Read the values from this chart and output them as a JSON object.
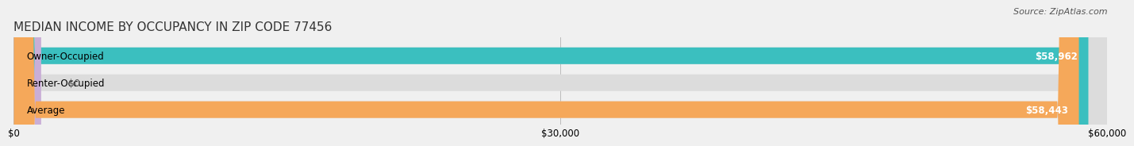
{
  "title": "MEDIAN INCOME BY OCCUPANCY IN ZIP CODE 77456",
  "source": "Source: ZipAtlas.com",
  "categories": [
    "Owner-Occupied",
    "Renter-Occupied",
    "Average"
  ],
  "values": [
    58962,
    0,
    58443
  ],
  "bar_colors": [
    "#3bbfbf",
    "#c9aed6",
    "#f5a85a"
  ],
  "bar_labels": [
    "$58,962",
    "$0",
    "$58,443"
  ],
  "xlim": [
    0,
    60000
  ],
  "xticks": [
    0,
    30000,
    60000
  ],
  "xtick_labels": [
    "$0",
    "$30,000",
    "$60,000"
  ],
  "background_color": "#f0f0f0",
  "bar_bg_color": "#dcdcdc",
  "title_fontsize": 11,
  "source_fontsize": 8,
  "label_fontsize": 8.5
}
